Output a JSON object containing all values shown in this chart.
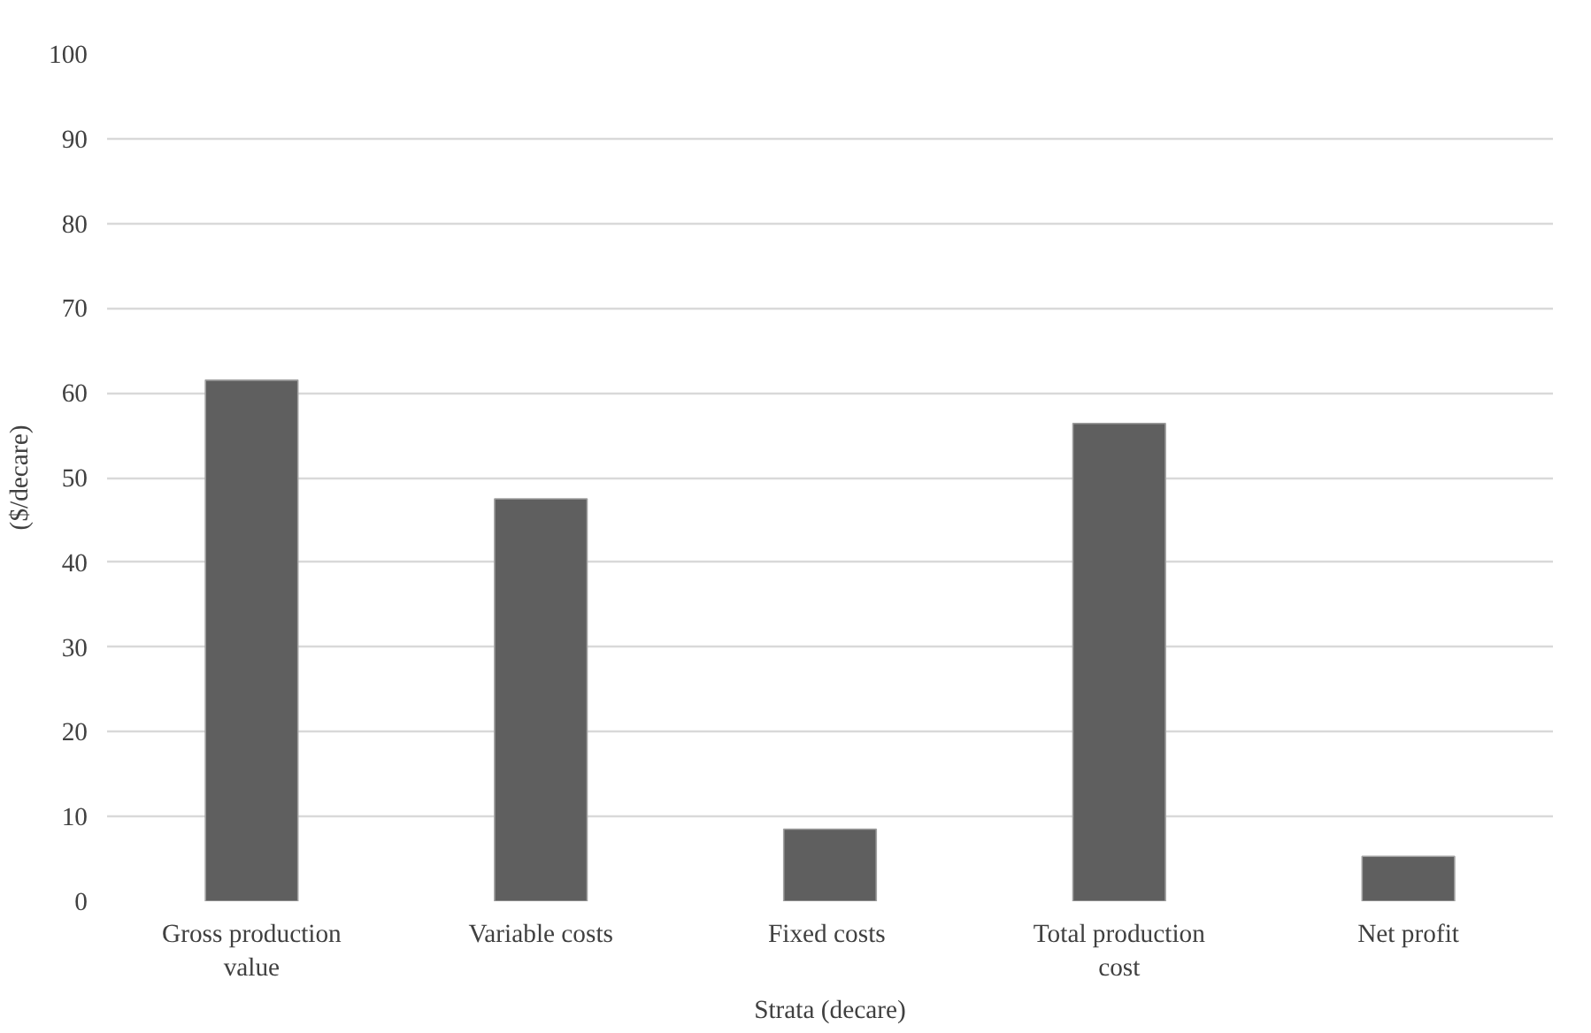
{
  "chart_data": {
    "type": "bar",
    "xlabel": "Strata (decare)",
    "ylabel": "($/decare)",
    "categories": [
      "Gross production value",
      "Variable costs",
      "Fixed  costs",
      "Total production cost",
      "Net profit"
    ],
    "values": [
      61.5,
      47.5,
      8.5,
      56.4,
      5.3
    ],
    "color": "#5f5f5f",
    "ylim": [
      0,
      100
    ],
    "yticks": [
      0,
      10,
      20,
      30,
      40,
      50,
      60,
      70,
      80,
      90,
      100
    ],
    "grid": "y"
  }
}
